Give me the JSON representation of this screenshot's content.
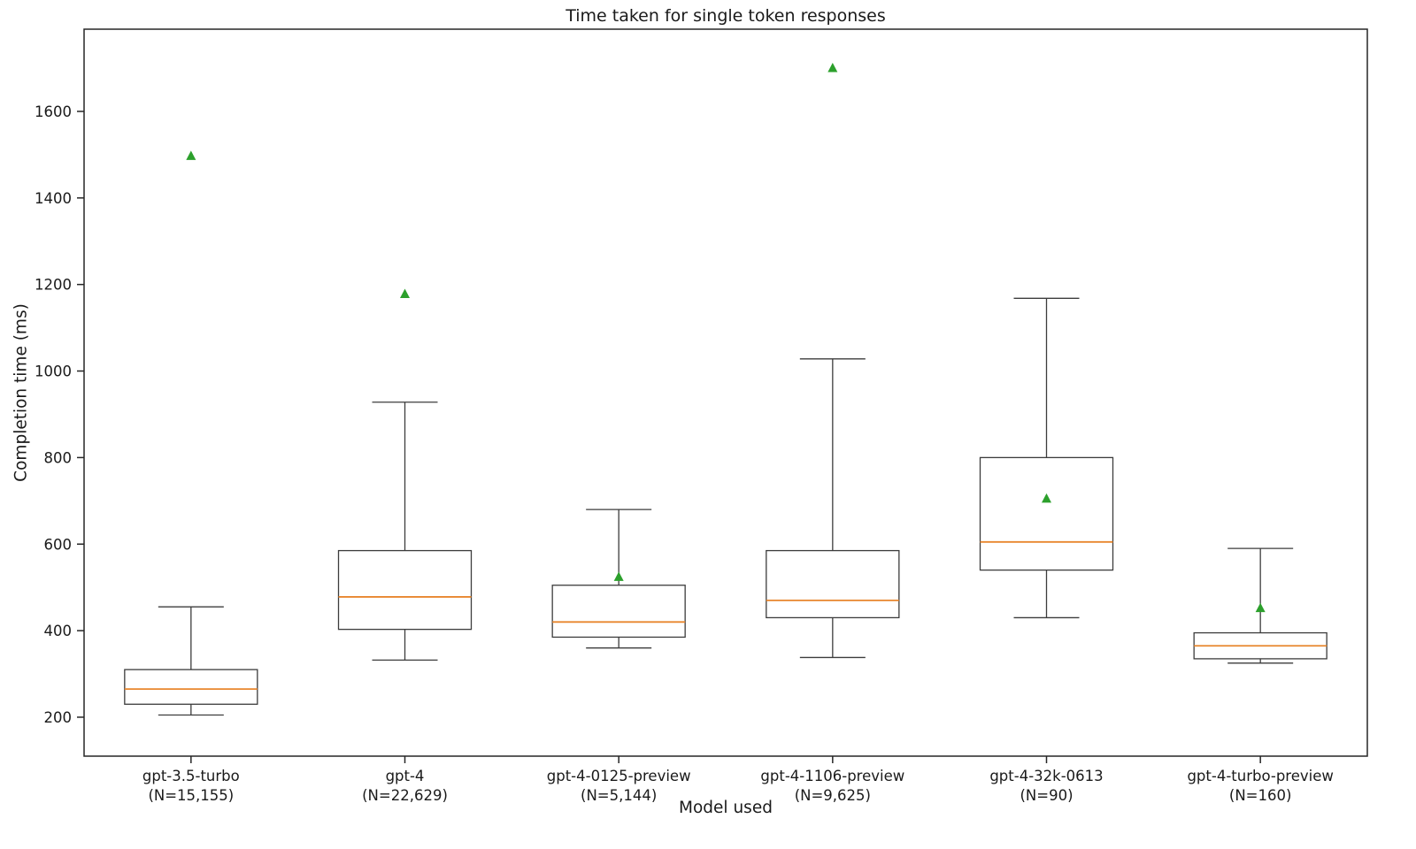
{
  "chart_data": {
    "type": "boxplot",
    "title": "Time taken for single token responses",
    "xlabel": "Model used",
    "ylabel": "Completion time (ms)",
    "ylim": [
      110,
      1790
    ],
    "yticks": [
      200,
      400,
      600,
      800,
      1000,
      1200,
      1400,
      1600
    ],
    "grid": false,
    "legend": "none",
    "series": [
      {
        "model": "gpt-3.5-turbo",
        "n_label": "(N=15,155)",
        "whisker_low": 205,
        "q1": 230,
        "median": 265,
        "q3": 310,
        "whisker_high": 455,
        "mean": 1497
      },
      {
        "model": "gpt-4",
        "n_label": "(N=22,629)",
        "whisker_low": 332,
        "q1": 403,
        "median": 478,
        "q3": 585,
        "whisker_high": 928,
        "mean": 1178
      },
      {
        "model": "gpt-4-0125-preview",
        "n_label": "(N=5,144)",
        "whisker_low": 360,
        "q1": 385,
        "median": 420,
        "q3": 505,
        "whisker_high": 680,
        "mean": 524
      },
      {
        "model": "gpt-4-1106-preview",
        "n_label": "(N=9,625)",
        "whisker_low": 338,
        "q1": 430,
        "median": 470,
        "q3": 585,
        "whisker_high": 1028,
        "mean": 1700
      },
      {
        "model": "gpt-4-32k-0613",
        "n_label": "(N=90)",
        "whisker_low": 430,
        "q1": 540,
        "median": 605,
        "q3": 800,
        "whisker_high": 1168,
        "mean": 705
      },
      {
        "model": "gpt-4-turbo-preview",
        "n_label": "(N=160)",
        "whisker_low": 325,
        "q1": 335,
        "median": 365,
        "q3": 395,
        "whisker_high": 590,
        "mean": 452
      }
    ]
  },
  "colors": {
    "median": "#e8862d",
    "mean_marker": "#2ca02c",
    "box_edge": "#3c3c3c",
    "axis": "#262626",
    "text": "#1a1a1a",
    "background": "#ffffff"
  }
}
